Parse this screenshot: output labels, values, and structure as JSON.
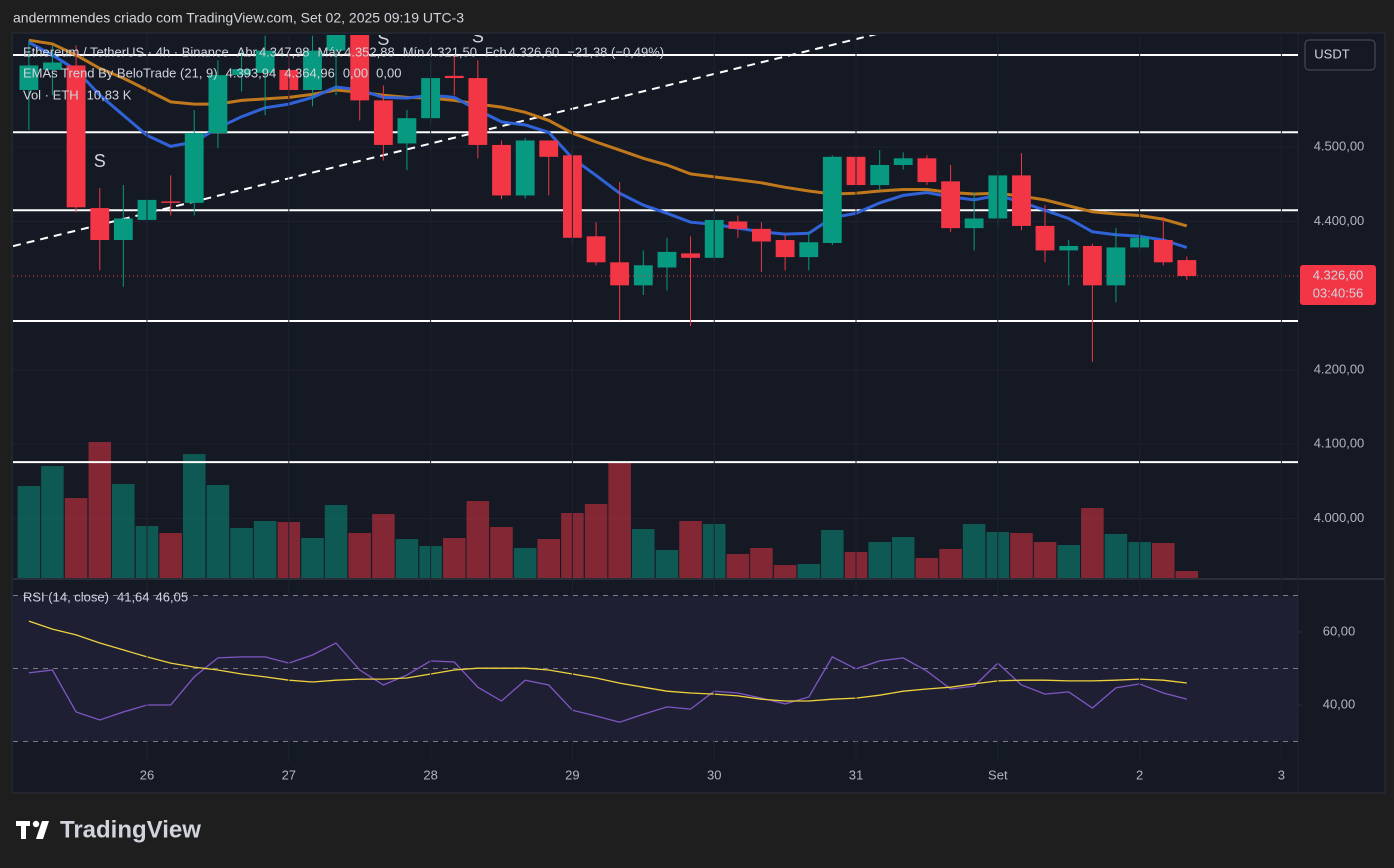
{
  "header": {
    "text": "andermmendes criado com TradingView.com, Set 02, 2025 09:19 UTC-3"
  },
  "branding": "TradingView",
  "chart_data": [
    {
      "type": "candlestick",
      "title": "Ethereum / TetherUS · 4h · Binance",
      "legend_fields": [
        {
          "label": "Abr",
          "value": "4.347,98"
        },
        {
          "label": "Máx",
          "value": "4.352,88"
        },
        {
          "label": "Mín",
          "value": "4.321,50"
        },
        {
          "label": "Fch",
          "value": "4.326,60"
        }
      ],
      "change": "−21,38 (−0,49%)",
      "currency": "USDT",
      "x": [
        25.167,
        25.333,
        25.5,
        25.667,
        25.833,
        26,
        26.167,
        26.333,
        26.5,
        26.667,
        26.833,
        27,
        27.167,
        27.333,
        27.5,
        27.667,
        27.833,
        28,
        28.167,
        28.333,
        28.5,
        28.667,
        28.833,
        29,
        29.167,
        29.333,
        29.5,
        29.667,
        29.833,
        30,
        30.167,
        30.333,
        30.5,
        30.667,
        30.833,
        31,
        31.167,
        31.333,
        31.5,
        31.667,
        31.833,
        32,
        32.167,
        32.333,
        32.5,
        32.667,
        32.833,
        33,
        33.167,
        33.333
      ],
      "xlim": [
        25.055,
        34.117
      ],
      "xticks": [
        26,
        27,
        28,
        29,
        30,
        31,
        {
          "value": 32,
          "label": "Set"
        },
        {
          "value": 33,
          "label": "2"
        },
        {
          "value": 34,
          "label": "3"
        }
      ],
      "ylim": [
        3920,
        4651
      ],
      "yticks": [
        {
          "value": 4000,
          "label": "4.000,00"
        },
        {
          "value": 4100,
          "label": "4.100,00"
        },
        {
          "value": 4200,
          "label": "4.200,00"
        },
        {
          "value": 4400,
          "label": "4.400,00"
        },
        {
          "value": 4500,
          "label": "4.500,00"
        }
      ],
      "grid": true,
      "up_color": "#089981",
      "down_color": "#f23645",
      "open": [
        4577,
        4604,
        4610,
        4418,
        4375,
        4402,
        4427,
        4425,
        4519,
        4597,
        4600,
        4604,
        4577,
        4630,
        4660,
        4563,
        4505,
        4539,
        4596,
        4593,
        4503,
        4435,
        4509,
        4489,
        4380,
        4345,
        4314,
        4338,
        4357,
        4351,
        4400,
        4390,
        4375,
        4352,
        4371,
        4487,
        4449,
        4476,
        4485,
        4454,
        4391,
        4404,
        4462,
        4394,
        4361,
        4367,
        4314,
        4365,
        4375,
        4347.98
      ],
      "high": [
        4644,
        4637,
        4637,
        4445,
        4449,
        4452,
        4462,
        4550,
        4617,
        4630,
        4650,
        4624,
        4650,
        4680,
        4680,
        4583,
        4550,
        4617,
        4624,
        4617,
        4509,
        4512,
        4509,
        4496,
        4399,
        4453,
        4361,
        4378,
        4380,
        4415,
        4408,
        4399,
        4382,
        4386,
        4489,
        4489,
        4496,
        4493,
        4489,
        4476,
        4439,
        4469,
        4492,
        4422,
        4375,
        4370,
        4391,
        4388,
        4406,
        4352.88
      ],
      "low": [
        4523,
        4570,
        4412,
        4334,
        4312,
        4395,
        4408,
        4408,
        4499,
        4575,
        4543,
        4563,
        4555,
        4570,
        4536,
        4482,
        4469,
        4530,
        4570,
        4485,
        4430,
        4431,
        4435,
        4368,
        4341,
        4267,
        4301,
        4307,
        4259,
        4348,
        4378,
        4332,
        4334,
        4334,
        4368,
        4439,
        4442,
        4470,
        4449,
        4386,
        4361,
        4395,
        4388,
        4345,
        4314,
        4211,
        4291,
        4360,
        4341,
        4321.5
      ],
      "close": [
        4610,
        4614,
        4419,
        4375,
        4404,
        4429,
        4425,
        4519,
        4597,
        4605,
        4630,
        4577,
        4630,
        4660,
        4563,
        4503,
        4539,
        4593,
        4593,
        4503,
        4435,
        4509,
        4487,
        4378,
        4345,
        4314,
        4341,
        4359,
        4351,
        4402,
        4390,
        4373,
        4352,
        4372,
        4487,
        4449,
        4476,
        4485,
        4453,
        4391,
        4404,
        4462,
        4394,
        4361,
        4367,
        4314,
        4365,
        4378,
        4345,
        4326.6
      ],
      "last_price": {
        "value": 4326.6,
        "label": "4.326,60"
      },
      "countdown": "03:40:56",
      "indicator": {
        "name": "EMAs Trend By BeloTrade (21, 9)",
        "series": [
          {
            "color": "#c0781c",
            "value_label": "4.393,94",
            "values": [
              4644,
              4639,
              4624,
              4606,
              4593,
              4577,
              4561,
              4558,
              4558,
              4563,
              4565,
              4567,
              4571,
              4577,
              4574,
              4570,
              4567,
              4566,
              4563,
              4558,
              4554,
              4547,
              4536,
              4519,
              4507,
              4496,
              4485,
              4476,
              4464,
              4460,
              4456,
              4452,
              4446,
              4441,
              4437,
              4438,
              4441,
              4443,
              4443,
              4439,
              4437,
              4438,
              4434,
              4429,
              4421,
              4413,
              4410,
              4408,
              4403,
              4393.94
            ]
          },
          {
            "color": "#3062d8",
            "value_label": "4.364,96",
            "values": [
              4641,
              4624,
              4604,
              4570,
              4543,
              4516,
              4501,
              4507,
              4526,
              4541,
              4553,
              4558,
              4567,
              4581,
              4577,
              4567,
              4566,
              4570,
              4567,
              4550,
              4534,
              4530,
              4520,
              4485,
              4462,
              4438,
              4422,
              4411,
              4399,
              4396,
              4391,
              4386,
              4383,
              4384,
              4405,
              4411,
              4425,
              4435,
              4439,
              4433,
              4429,
              4435,
              4426,
              4415,
              4404,
              4386,
              4382,
              4380,
              4375,
              4364.96
            ]
          }
        ],
        "extra_values": [
          {
            "value": "0,00",
            "color": "#089981"
          },
          {
            "value": "0,00",
            "color": "#f23645"
          }
        ]
      },
      "volume": {
        "name": "Vol · ETH",
        "value_label": "10,83 K",
        "ylim": [
          0,
          212
        ],
        "values": [
          142.3,
          173.3,
          123.8,
          210.4,
          145.4,
          80.4,
          69.6,
          191.8,
          143.9,
          77.4,
          88.2,
          86.6,
          61.9,
          112.9,
          69.6,
          99.0,
          60.3,
          49.5,
          61.9,
          119.1,
          78.9,
          46.4,
          60.3,
          100.6,
          114.5,
          177.9,
          75.8,
          43.3,
          88.2,
          83.5,
          37.1,
          46.4,
          20.1,
          21.7,
          74.3,
          40.2,
          55.7,
          63.4,
          30.9,
          44.9,
          83.5,
          71.2,
          69.6,
          55.7,
          51.1,
          108.3,
          68.1,
          55.7,
          54.1,
          10.83
        ]
      },
      "levels": [
        4624,
        4520,
        4415,
        4266,
        4076
      ],
      "trendline": {
        "x": [
          25.055,
          31.169
        ],
        "y": [
          4366.8,
          4653.4
        ]
      },
      "signal_color": "#b8283c",
      "signals": [
        {
          "label": "S",
          "x": 25.667,
          "y": 4480
        },
        {
          "label": "S",
          "x": 27.667,
          "y": 4644
        },
        {
          "label": "S",
          "x": 28.333,
          "y": 4647
        }
      ]
    },
    {
      "type": "line",
      "title": "RSI (14, close)",
      "x": [
        25.167,
        25.333,
        25.5,
        25.667,
        25.833,
        26,
        26.167,
        26.333,
        26.5,
        26.667,
        26.833,
        27,
        27.167,
        27.333,
        27.5,
        27.667,
        27.833,
        28,
        28.167,
        28.333,
        28.5,
        28.667,
        28.833,
        29,
        29.167,
        29.333,
        29.5,
        29.667,
        29.833,
        30,
        30.167,
        30.333,
        30.5,
        30.667,
        30.833,
        31,
        31.167,
        31.333,
        31.5,
        31.667,
        31.833,
        32,
        32.167,
        32.333,
        32.5,
        32.667,
        32.833,
        33,
        33.167,
        33.333
      ],
      "xlim": [
        25.055,
        34.117
      ],
      "ylim": [
        24.4,
        74.25
      ],
      "yticks": [
        {
          "value": 40,
          "label": "40,00"
        },
        {
          "value": 60,
          "label": "60,00"
        }
      ],
      "bands": [
        70,
        50,
        30
      ],
      "band_color": "#7e57c2",
      "series": [
        {
          "color": "#7e57c2",
          "value_label": "41,64",
          "values": [
            48.8,
            49.6,
            38.1,
            35.9,
            38.1,
            40.0,
            40.0,
            47.7,
            52.9,
            53.2,
            53.2,
            51.5,
            53.7,
            57.0,
            49.6,
            45.5,
            48.2,
            52.1,
            51.8,
            44.9,
            41.1,
            46.8,
            45.5,
            38.6,
            37.0,
            35.3,
            37.5,
            39.5,
            38.9,
            43.8,
            43.3,
            41.9,
            40.3,
            42.2,
            53.2,
            49.9,
            52.1,
            52.9,
            49.3,
            44.4,
            45.2,
            51.5,
            45.5,
            43.0,
            43.6,
            39.2,
            44.7,
            45.8,
            43.3,
            41.64
          ]
        },
        {
          "color": "#f0d23c",
          "value_label": "46,05",
          "values": [
            63.0,
            60.8,
            59.2,
            57.0,
            55.1,
            53.2,
            51.5,
            50.4,
            49.6,
            48.5,
            47.7,
            46.8,
            46.3,
            46.8,
            47.1,
            47.1,
            47.4,
            48.5,
            49.6,
            50.1,
            50.1,
            50.1,
            49.6,
            48.5,
            47.4,
            46.0,
            44.9,
            43.8,
            43.3,
            43.0,
            42.5,
            41.6,
            41.1,
            41.1,
            41.6,
            41.9,
            42.7,
            43.8,
            44.4,
            44.9,
            45.8,
            46.6,
            46.8,
            46.8,
            46.6,
            46.6,
            46.8,
            47.1,
            46.8,
            46.05
          ]
        }
      ]
    }
  ]
}
